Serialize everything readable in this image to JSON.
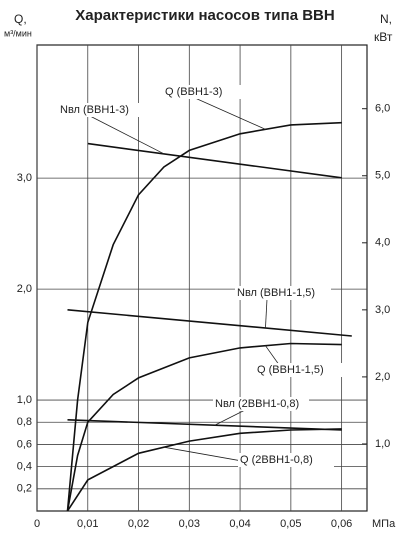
{
  "chart_data": {
    "type": "line",
    "title": "Характеристики насосов типа ВВН",
    "y_label": "Q,",
    "y_unit": "м³/мин",
    "y2_label": "N,",
    "y2_unit": "кВт",
    "x_unit": "МПа",
    "xlim": [
      0,
      0.065
    ],
    "ylim": [
      0,
      4.2
    ],
    "y2lim": [
      0,
      6.95
    ],
    "xticks": [
      0,
      {
        "value": 0.01,
        "label": "0,01"
      },
      {
        "value": 0.02,
        "label": "0,02"
      },
      {
        "value": 0.03,
        "label": "0,03"
      },
      {
        "value": 0.04,
        "label": "0,04"
      },
      {
        "value": 0.05,
        "label": "0,05"
      },
      {
        "value": 0.06,
        "label": "0,06"
      }
    ],
    "yticks": [
      {
        "value": 0.2,
        "label": "0,2"
      },
      {
        "value": 0.4,
        "label": "0,4"
      },
      {
        "value": 0.6,
        "label": "0,6"
      },
      {
        "value": 0.8,
        "label": "0,8"
      },
      {
        "value": 1.0,
        "label": "1,0"
      },
      {
        "value": 2.0,
        "label": "2,0"
      },
      {
        "value": 3.0,
        "label": "3,0"
      }
    ],
    "y2ticks": [
      {
        "value": 1.0,
        "label": "1,0"
      },
      {
        "value": 2.0,
        "label": "2,0"
      },
      {
        "value": 3.0,
        "label": "3,0"
      },
      {
        "value": 4.0,
        "label": "4,0"
      },
      {
        "value": 5.0,
        "label": "5,0"
      },
      {
        "value": 6.0,
        "label": "6,0"
      }
    ],
    "grid": true,
    "series": [
      {
        "name": "Q (ВВН1-3)",
        "color": "#111111",
        "x": [
          0.006,
          0.008,
          0.01,
          0.015,
          0.02,
          0.025,
          0.03,
          0.04,
          0.05,
          0.06
        ],
        "values": [
          0,
          1.0,
          1.7,
          2.4,
          2.85,
          3.1,
          3.25,
          3.4,
          3.48,
          3.5
        ]
      },
      {
        "name": "Nвл (ВВН1-3)",
        "color": "#111111",
        "axis": "y2",
        "x": [
          0.01,
          0.06
        ],
        "values": [
          5.48,
          4.97
        ]
      },
      {
        "name": "Nвл (ВВН1-1,5)",
        "color": "#111111",
        "axis": "y2",
        "x": [
          0.006,
          0.062
        ],
        "values": [
          3.0,
          2.61
        ]
      },
      {
        "name": "Q (ВВН1-1,5)",
        "color": "#111111",
        "x": [
          0.006,
          0.008,
          0.01,
          0.015,
          0.02,
          0.03,
          0.04,
          0.05,
          0.06
        ],
        "values": [
          0,
          0.5,
          0.8,
          1.05,
          1.2,
          1.38,
          1.47,
          1.51,
          1.5
        ]
      },
      {
        "name": "Nвл (2ВВН1-0,8)",
        "color": "#111111",
        "axis": "y2",
        "x": [
          0.006,
          0.06
        ],
        "values": [
          1.36,
          1.21
        ]
      },
      {
        "name": "Q (2ВВН1-0,8)",
        "color": "#111111",
        "x": [
          0.006,
          0.01,
          0.02,
          0.03,
          0.04,
          0.05,
          0.06
        ],
        "values": [
          0,
          0.28,
          0.52,
          0.63,
          0.7,
          0.73,
          0.74
        ]
      }
    ]
  }
}
